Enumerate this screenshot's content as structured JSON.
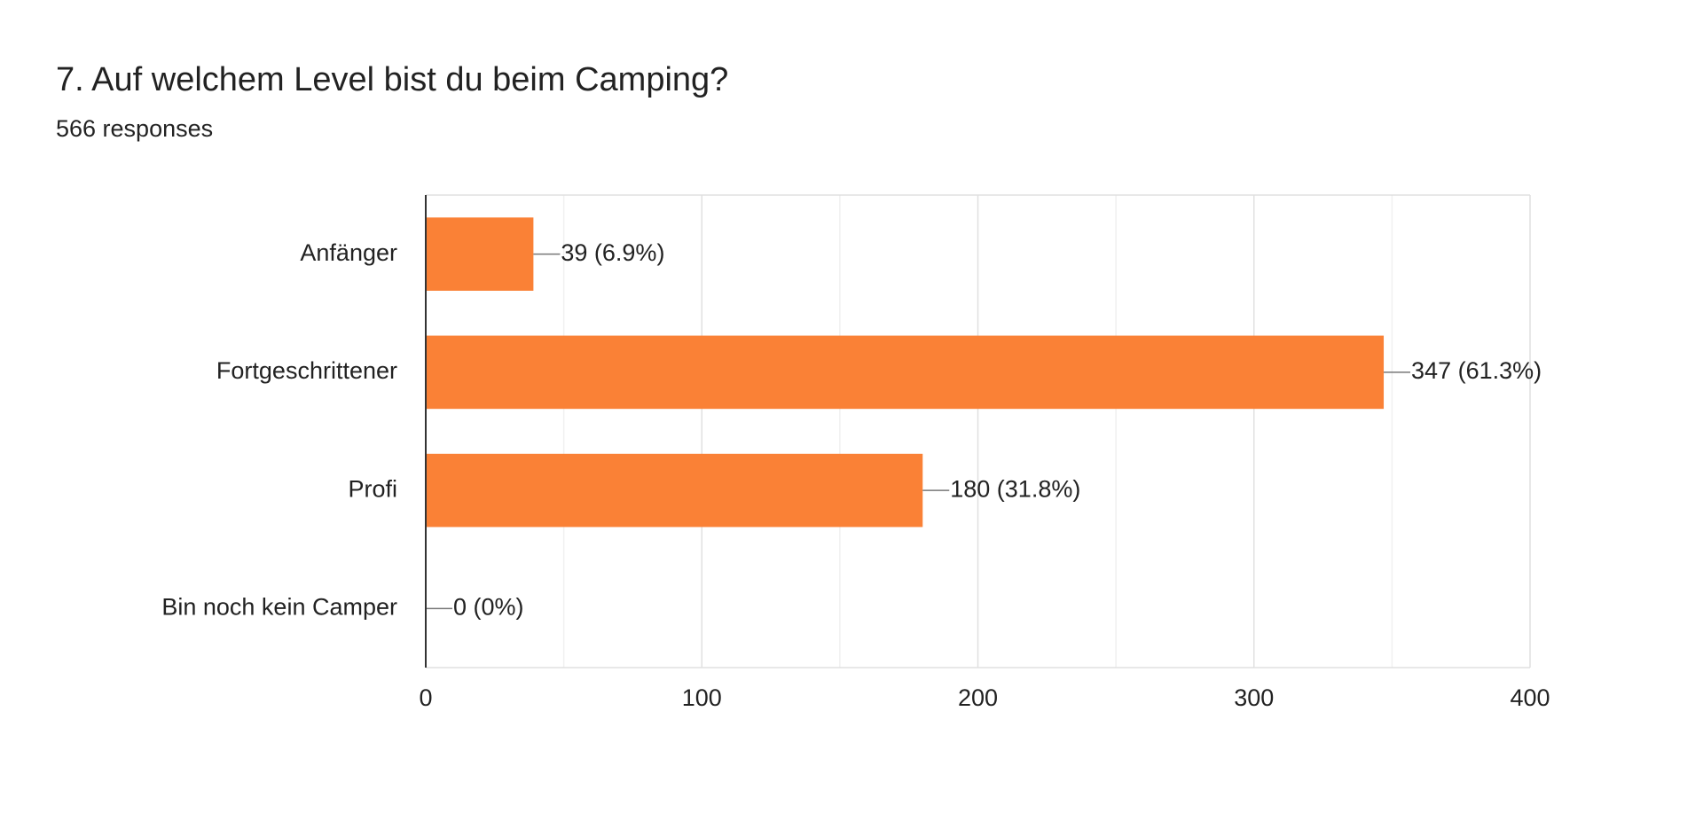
{
  "chart_data": {
    "type": "hbar",
    "title": "7. Auf welchem Level bist du beim Camping?",
    "subtitle": "566 responses",
    "categories": [
      "Anfänger",
      "Fortgeschrittener",
      "Profi",
      "Bin noch kein Camper"
    ],
    "values": [
      39,
      347,
      180,
      0
    ],
    "value_labels": [
      "39 (6.9%)",
      "347 (61.3%)",
      "180 (31.8%)",
      "0 (0%)"
    ],
    "color": "#fa8136",
    "xlim": [
      0,
      400
    ],
    "xticks": [
      0,
      100,
      200,
      300,
      400
    ],
    "minor_xticks": [
      50,
      150,
      250,
      350
    ],
    "grid": true
  }
}
